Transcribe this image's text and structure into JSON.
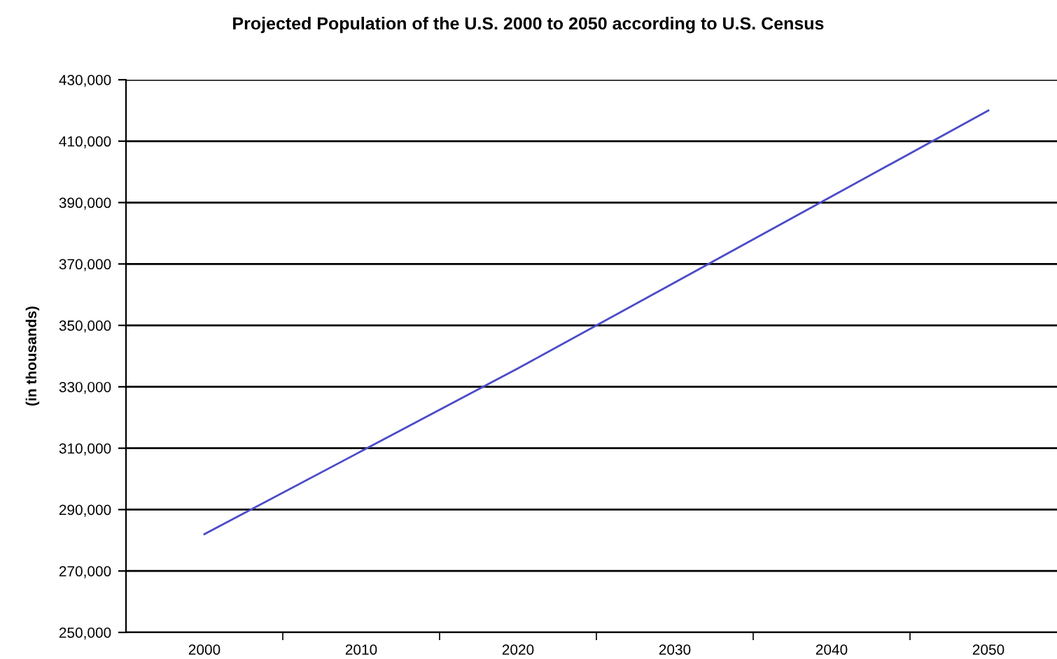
{
  "chart_data": {
    "type": "line",
    "title": "Projected Population of the U.S. 2000 to 2050 according to U.S. Census",
    "ylabel": "(in thousands)",
    "categories": [
      "2000",
      "2010",
      "2020",
      "2030",
      "2040",
      "2050"
    ],
    "series": [
      {
        "color": "#4b4bc8",
        "values": [
          282000,
          309000,
          336000,
          364000,
          392000,
          420000
        ]
      }
    ],
    "ylim": [
      250000,
      430000
    ],
    "yticks": [
      {
        "value": 250000,
        "label": "250,000"
      },
      {
        "value": 270000,
        "label": "270,000"
      },
      {
        "value": 290000,
        "label": "290,000"
      },
      {
        "value": 310000,
        "label": "310,000"
      },
      {
        "value": 330000,
        "label": "330,000"
      },
      {
        "value": 350000,
        "label": "350,000"
      },
      {
        "value": 370000,
        "label": "370,000"
      },
      {
        "value": 390000,
        "label": "390,000"
      },
      {
        "value": 410000,
        "label": "410,000"
      },
      {
        "value": 430000,
        "label": "430,000"
      }
    ],
    "grid": "y",
    "legend": false,
    "marker": "none",
    "line_style": "solid"
  }
}
